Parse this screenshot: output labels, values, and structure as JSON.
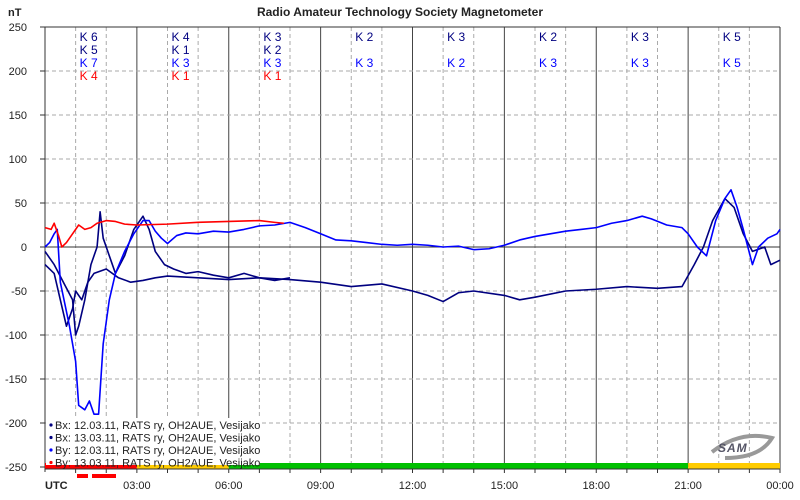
{
  "chart_data": {
    "type": "line",
    "title": "Radio Amateur Technology Society Magnetometer",
    "ylabel": "nT",
    "xlabel": "UTC",
    "ylim": [
      -250,
      250
    ],
    "yticks": [
      "250",
      "200",
      "150",
      "100",
      "50",
      "0",
      "-50",
      "-100",
      "-150",
      "-200",
      "-250"
    ],
    "xlim_hours": [
      0,
      24
    ],
    "xticks": [
      "03:00",
      "06:00",
      "09:00",
      "12:00",
      "15:00",
      "18:00",
      "21:00",
      "00:00"
    ],
    "grid": true,
    "legend_position": "bottom-left",
    "k_indices": [
      {
        "col": 0,
        "rows": [
          "K 6",
          "K 5",
          "K 7",
          "K 4"
        ]
      },
      {
        "col": 1,
        "rows": [
          "K 4",
          "K 1",
          "K 3",
          "K 1"
        ]
      },
      {
        "col": 2,
        "rows": [
          "K 3",
          "K 2",
          "K 3",
          "K 1"
        ]
      },
      {
        "col": 3,
        "rows": [
          "K 2",
          "",
          "K 3",
          ""
        ]
      },
      {
        "col": 4,
        "rows": [
          "K 3",
          "",
          "K 2",
          ""
        ]
      },
      {
        "col": 5,
        "rows": [
          "K 2",
          "",
          "K 3",
          ""
        ]
      },
      {
        "col": 6,
        "rows": [
          "K 3",
          "",
          "K 3",
          ""
        ]
      },
      {
        "col": 7,
        "rows": [
          "K 5",
          "",
          "K 5",
          ""
        ]
      }
    ],
    "activity_bar": [
      {
        "from": 0,
        "to": 3,
        "color": "#ff0000"
      },
      {
        "from": 3,
        "to": 6,
        "color": "#ffcc00"
      },
      {
        "from": 6,
        "to": 21,
        "color": "#00c000"
      },
      {
        "from": 21,
        "to": 24,
        "color": "#ffcc00"
      }
    ],
    "series": [
      {
        "name": "Bx: 12.03.11, RATS ry, OH2AUE, Vesijako",
        "color": "#000080",
        "points": [
          [
            0,
            -20
          ],
          [
            0.3,
            -30
          ],
          [
            0.5,
            -60
          ],
          [
            0.7,
            -90
          ],
          [
            0.9,
            -70
          ],
          [
            1.0,
            -50
          ],
          [
            1.2,
            -60
          ],
          [
            1.4,
            -40
          ],
          [
            1.6,
            -30
          ],
          [
            2.0,
            -25
          ],
          [
            2.4,
            -35
          ],
          [
            2.8,
            -40
          ],
          [
            3.2,
            -38
          ],
          [
            3.6,
            -35
          ],
          [
            4,
            -33
          ],
          [
            5,
            -35
          ],
          [
            6,
            -37
          ],
          [
            7,
            -35
          ],
          [
            8,
            -37
          ],
          [
            9,
            -40
          ],
          [
            10,
            -45
          ],
          [
            11,
            -42
          ],
          [
            12,
            -50
          ],
          [
            12.5,
            -55
          ],
          [
            13,
            -62
          ],
          [
            13.5,
            -52
          ],
          [
            14,
            -50
          ],
          [
            15,
            -55
          ],
          [
            15.5,
            -60
          ],
          [
            16,
            -57
          ],
          [
            17,
            -50
          ],
          [
            18,
            -48
          ],
          [
            19,
            -45
          ],
          [
            20,
            -47
          ],
          [
            20.8,
            -45
          ],
          [
            21.2,
            -20
          ],
          [
            21.5,
            0
          ],
          [
            21.8,
            30
          ],
          [
            22.2,
            55
          ],
          [
            22.5,
            45
          ],
          [
            22.8,
            15
          ],
          [
            23.1,
            -5
          ],
          [
            23.5,
            0
          ],
          [
            23.7,
            -20
          ],
          [
            24,
            -15
          ]
        ]
      },
      {
        "name": "Bx: 13.03.11, RATS ry, OH2AUE, Vesijako",
        "color": "#000080",
        "points": [
          [
            0,
            -5
          ],
          [
            0.3,
            -20
          ],
          [
            0.6,
            -40
          ],
          [
            0.9,
            -60
          ],
          [
            1.0,
            -100
          ],
          [
            1.1,
            -90
          ],
          [
            1.3,
            -60
          ],
          [
            1.5,
            -20
          ],
          [
            1.7,
            0
          ],
          [
            1.8,
            40
          ],
          [
            1.9,
            10
          ],
          [
            2.1,
            -10
          ],
          [
            2.3,
            -30
          ],
          [
            2.6,
            -10
          ],
          [
            2.9,
            20
          ],
          [
            3.2,
            35
          ],
          [
            3.4,
            20
          ],
          [
            3.6,
            -5
          ],
          [
            3.9,
            -20
          ],
          [
            4.2,
            -25
          ],
          [
            4.6,
            -30
          ],
          [
            5,
            -28
          ],
          [
            5.5,
            -32
          ],
          [
            6,
            -35
          ],
          [
            6.5,
            -30
          ],
          [
            7,
            -35
          ],
          [
            7.5,
            -38
          ],
          [
            8,
            -35
          ]
        ]
      },
      {
        "name": "By: 12.03.11, RATS ry, OH2AUE, Vesijako",
        "color": "#0000ff",
        "points": [
          [
            0,
            0
          ],
          [
            0.15,
            5
          ],
          [
            0.3,
            15
          ],
          [
            0.4,
            20
          ],
          [
            0.5,
            -40
          ],
          [
            0.8,
            -90
          ],
          [
            1.0,
            -130
          ],
          [
            1.1,
            -180
          ],
          [
            1.3,
            -185
          ],
          [
            1.45,
            -175
          ],
          [
            1.6,
            -190
          ],
          [
            1.75,
            -190
          ],
          [
            1.9,
            -110
          ],
          [
            2.1,
            -60
          ],
          [
            2.3,
            -30
          ],
          [
            2.6,
            -5
          ],
          [
            2.9,
            15
          ],
          [
            3.2,
            30
          ],
          [
            3.4,
            30
          ],
          [
            3.6,
            18
          ],
          [
            3.8,
            10
          ],
          [
            4.0,
            4
          ],
          [
            4.3,
            13
          ],
          [
            4.6,
            16
          ],
          [
            5,
            15
          ],
          [
            5.5,
            18
          ],
          [
            6,
            17
          ],
          [
            6.5,
            20
          ],
          [
            7,
            24
          ],
          [
            7.5,
            25
          ],
          [
            8,
            28
          ],
          [
            8.5,
            22
          ],
          [
            9,
            15
          ],
          [
            9.5,
            8
          ],
          [
            10,
            7
          ],
          [
            10.5,
            5
          ],
          [
            11,
            3
          ],
          [
            11.5,
            2
          ],
          [
            12,
            3
          ],
          [
            12.5,
            2
          ],
          [
            13,
            0
          ],
          [
            13.5,
            1
          ],
          [
            14,
            -3
          ],
          [
            14.5,
            -2
          ],
          [
            15,
            2
          ],
          [
            15.5,
            8
          ],
          [
            16,
            12
          ],
          [
            16.5,
            15
          ],
          [
            17,
            18
          ],
          [
            17.5,
            20
          ],
          [
            18,
            22
          ],
          [
            18.5,
            27
          ],
          [
            19,
            30
          ],
          [
            19.5,
            35
          ],
          [
            19.8,
            32
          ],
          [
            20.3,
            25
          ],
          [
            20.8,
            22
          ],
          [
            21,
            15
          ],
          [
            21.3,
            0
          ],
          [
            21.6,
            -10
          ],
          [
            21.9,
            30
          ],
          [
            22.2,
            55
          ],
          [
            22.4,
            65
          ],
          [
            22.6,
            45
          ],
          [
            22.8,
            20
          ],
          [
            23.1,
            -20
          ],
          [
            23.3,
            0
          ],
          [
            23.6,
            10
          ],
          [
            23.9,
            15
          ],
          [
            24,
            20
          ]
        ]
      },
      {
        "name": "By: 13.03.11, RATS ry, OH2AUE, Vesijako",
        "color": "#ff0000",
        "points": [
          [
            0,
            22
          ],
          [
            0.2,
            20
          ],
          [
            0.3,
            27
          ],
          [
            0.45,
            12
          ],
          [
            0.55,
            0
          ],
          [
            0.7,
            5
          ],
          [
            0.9,
            15
          ],
          [
            1.1,
            25
          ],
          [
            1.3,
            20
          ],
          [
            1.5,
            22
          ],
          [
            1.7,
            27
          ],
          [
            2.0,
            30
          ],
          [
            2.3,
            29
          ],
          [
            2.6,
            26
          ],
          [
            3,
            25
          ],
          [
            4,
            26
          ],
          [
            5,
            28
          ],
          [
            6,
            29
          ],
          [
            7,
            30
          ],
          [
            7.5,
            28
          ],
          [
            7.8,
            27
          ]
        ]
      }
    ],
    "logo_text": "SAM"
  }
}
